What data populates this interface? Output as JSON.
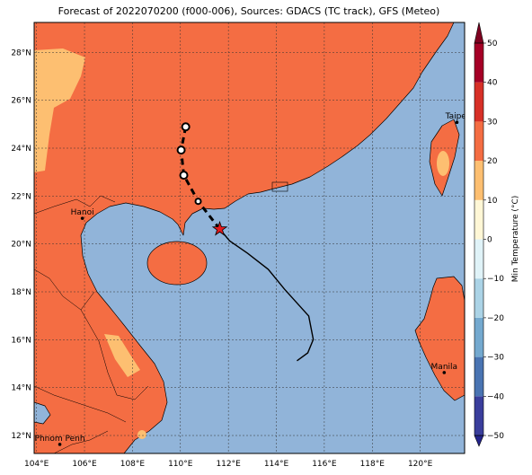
{
  "header": {
    "title": "Forecast of 2022070200 (f000-006), Sources: GDACS (TC track), GFS (Meteo)"
  },
  "map": {
    "lonlim": [
      103.9,
      121.85
    ],
    "latlim": [
      11.25,
      29.25
    ],
    "xticks": [
      {
        "value": 104,
        "label": "104°E"
      },
      {
        "value": 106,
        "label": "106°E"
      },
      {
        "value": 108,
        "label": "108°E"
      },
      {
        "value": 110,
        "label": "110°E"
      },
      {
        "value": 112,
        "label": "112°E"
      },
      {
        "value": 114,
        "label": "114°E"
      },
      {
        "value": 116,
        "label": "116°E"
      },
      {
        "value": 118,
        "label": "118°E"
      },
      {
        "value": 120,
        "label": "120°E"
      }
    ],
    "yticks": [
      {
        "value": 12,
        "label": "12°N"
      },
      {
        "value": 14,
        "label": "14°N"
      },
      {
        "value": 16,
        "label": "16°N"
      },
      {
        "value": 18,
        "label": "18°N"
      },
      {
        "value": 20,
        "label": "20°N"
      },
      {
        "value": 22,
        "label": "22°N"
      },
      {
        "value": 24,
        "label": "24°N"
      },
      {
        "value": 26,
        "label": "26°N"
      },
      {
        "value": 28,
        "label": "28°N"
      }
    ],
    "grid": true,
    "cities": [
      {
        "name": "Taipei",
        "lon": 121.53,
        "lat": 25.08
      },
      {
        "name": "Hanoi",
        "lon": 105.91,
        "lat": 21.07
      },
      {
        "name": "Manila",
        "lon": 121.0,
        "lat": 14.63
      },
      {
        "name": "Phnom Penh",
        "lon": 104.97,
        "lat": 11.63
      }
    ],
    "track": {
      "current": {
        "lon": 111.64,
        "lat": 20.62,
        "color": "#e31a1c"
      },
      "forecast": {
        "lon": [
          111.64,
          110.74,
          110.14,
          110.03,
          110.22
        ],
        "lat": [
          20.62,
          21.78,
          22.87,
          23.92,
          24.89
        ]
      },
      "observed": {
        "lon": [
          111.64,
          112.05,
          112.8,
          113.66,
          114.34,
          115.35,
          115.54,
          115.31,
          114.86
        ],
        "lat": [
          20.62,
          20.13,
          19.61,
          18.94,
          18.11,
          16.99,
          16.01,
          15.45,
          15.12
        ]
      }
    }
  },
  "colorbar": {
    "label": "Min Temperature (°C)",
    "ticks": [
      {
        "value": -50,
        "label": "−50"
      },
      {
        "value": -40,
        "label": "−40"
      },
      {
        "value": -30,
        "label": "−30"
      },
      {
        "value": -20,
        "label": "−20"
      },
      {
        "value": -10,
        "label": "−10"
      },
      0,
      10,
      20,
      30,
      40,
      50
    ],
    "colors": [
      "#3a3e9c",
      "#4a74b2",
      "#74a9cf",
      "#abd3e6",
      "#e0f3f8",
      "#fff7d6",
      "#fdbf71",
      "#f46d43",
      "#d73027",
      "#a50026"
    ],
    "under_color": "#24248c",
    "over_color": "#7f0020"
  }
}
